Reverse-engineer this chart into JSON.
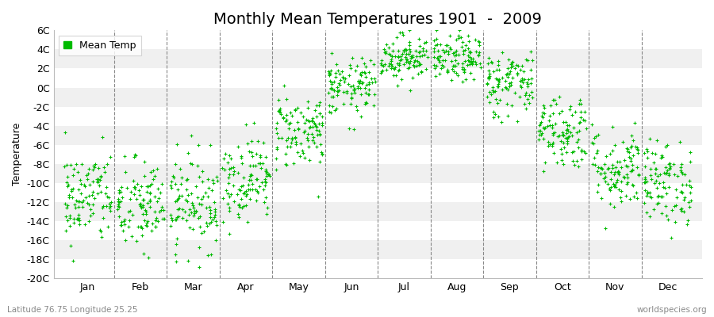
{
  "title": "Monthly Mean Temperatures 1901  -  2009",
  "ylabel": "Temperature",
  "lat_lon_label": "Latitude 76.75 Longitude 25.25",
  "watermark": "worldspecies.org",
  "ylim": [
    -20,
    6
  ],
  "yticks": [
    -20,
    -18,
    -16,
    -14,
    -12,
    -10,
    -8,
    -6,
    -4,
    -2,
    0,
    2,
    4,
    6
  ],
  "ytick_labels": [
    "-20C",
    "-18C",
    "-16C",
    "-14C",
    "-12C",
    "-10C",
    "-8C",
    "-6C",
    "-4C",
    "-2C",
    "0C",
    "2C",
    "4C",
    "6C"
  ],
  "months": [
    "Jan",
    "Feb",
    "Mar",
    "Apr",
    "May",
    "Jun",
    "Jul",
    "Aug",
    "Sep",
    "Oct",
    "Nov",
    "Dec"
  ],
  "month_means": [
    -11.5,
    -12.5,
    -12.0,
    -9.5,
    -4.5,
    0.0,
    3.2,
    3.0,
    0.5,
    -4.5,
    -8.5,
    -10.0
  ],
  "month_stds": [
    2.5,
    2.5,
    2.5,
    2.2,
    2.0,
    1.5,
    1.2,
    1.2,
    1.8,
    2.0,
    2.2,
    2.2
  ],
  "n_years": 109,
  "dot_color": "#00bb00",
  "dot_size": 5,
  "background_color": "#ffffff",
  "band_color_light": "#f0f0f0",
  "band_color_white": "#ffffff",
  "legend_label": "Mean Temp",
  "title_fontsize": 14,
  "axis_fontsize": 9,
  "tick_fontsize": 9
}
